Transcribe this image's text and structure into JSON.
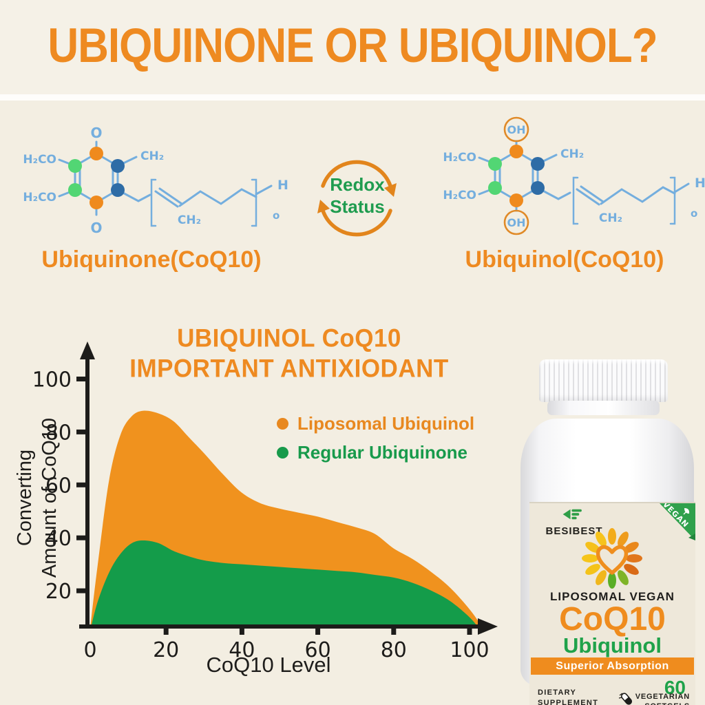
{
  "page": {
    "title": "UBIQUINONE OR UBIQUINOL?",
    "background_color": "#f3eee2",
    "accent_orange": "#ee8a21"
  },
  "molecules": {
    "left": {
      "name": "Ubiquinone(CoQ10)",
      "o_top": "O",
      "o_bottom": "O",
      "methoxy_top": "H₂CO",
      "methoxy_bottom": "H₂CO",
      "ch2_ring": "CH₂",
      "ch2_chain": "CH₂",
      "h_end": "H",
      "o_end": "o"
    },
    "right": {
      "name": "Ubiquinol(CoQ10)",
      "oh_top": "OH",
      "oh_bottom": "OH",
      "methoxy_top": "H₂CO",
      "methoxy_bottom": "H₂CO",
      "ch2_ring": "CH₂",
      "ch2_chain": "CH₂",
      "h_end": "H",
      "o_end": "o"
    },
    "redox": {
      "line1": "Redox",
      "line2": "Status"
    },
    "colors": {
      "bond_blue": "#74aede",
      "atom_orange": "#ef8a1d",
      "atom_green": "#52d674",
      "atom_dark_blue": "#2e6ca6",
      "redox_green": "#1f9c4f",
      "redox_arrow_orange": "#e2851c"
    }
  },
  "chart": {
    "title_line1": "UBIQUINOL CoQ10",
    "title_line2": "IMPORTANT ANTIXIODANT",
    "ylabel_line1": "Converting",
    "ylabel_line2": "Amount of CoQ10",
    "xlabel": "CoQ10 Level",
    "legend": [
      {
        "label": "Liposomal Ubiquinol",
        "color": "#e8881f"
      },
      {
        "label": "Regular Ubiquinone",
        "color": "#189a4b"
      }
    ]
  },
  "chart_data": {
    "type": "area",
    "title": "UBIQUINOL CoQ10 IMPORTANT ANTIXIODANT",
    "xlabel": "CoQ10 Level",
    "ylabel": "Converting Amount of CoQ10",
    "xlim": [
      0,
      105
    ],
    "ylim": [
      0,
      110
    ],
    "x_ticks": [
      0,
      20,
      40,
      60,
      80,
      100
    ],
    "y_ticks": [
      20,
      40,
      60,
      80,
      100
    ],
    "grid": false,
    "legend_position": "upper right",
    "x": [
      0,
      2,
      5,
      8,
      11,
      14,
      18,
      22,
      26,
      30,
      35,
      40,
      45,
      50,
      55,
      60,
      65,
      70,
      75,
      80,
      85,
      90,
      95,
      100,
      103,
      105
    ],
    "series": [
      {
        "name": "Liposomal Ubiquinol",
        "color": "#f0921e",
        "values": [
          6,
          30,
          62,
          79,
          86,
          88,
          87,
          84,
          78,
          72,
          64,
          57,
          53,
          51,
          49.5,
          48,
          46,
          44,
          41.5,
          36,
          32,
          27,
          21,
          13,
          7,
          2
        ]
      },
      {
        "name": "Regular Ubiquinone",
        "color": "#149c4a",
        "values": [
          5,
          16,
          27,
          34,
          38,
          39,
          38,
          35,
          33,
          31.5,
          30.5,
          30,
          29.5,
          29,
          28.5,
          28,
          27.5,
          27,
          26,
          25,
          23,
          20,
          16,
          10,
          5,
          2
        ]
      }
    ]
  },
  "product": {
    "brand": "BESIBEST",
    "vegan_badge": "VEGAN",
    "title_line1": "LIPOSOMAL VEGAN",
    "title_line2": "CoQ10",
    "title_line3": "Ubiquinol",
    "banner": "Superior Absorption",
    "count": "60",
    "softgels_line1": "VEGETARIAN",
    "softgels_line2": "SOFTGELS",
    "supplement_line1": "DIETARY",
    "supplement_line2": "SUPPLEMENT",
    "colors": {
      "coq10_orange": "#ef8c1e",
      "ubiquinol_green": "#1fa24a",
      "banner_orange": "#ef8c1e",
      "vegan_green": "#2fa14c"
    }
  }
}
